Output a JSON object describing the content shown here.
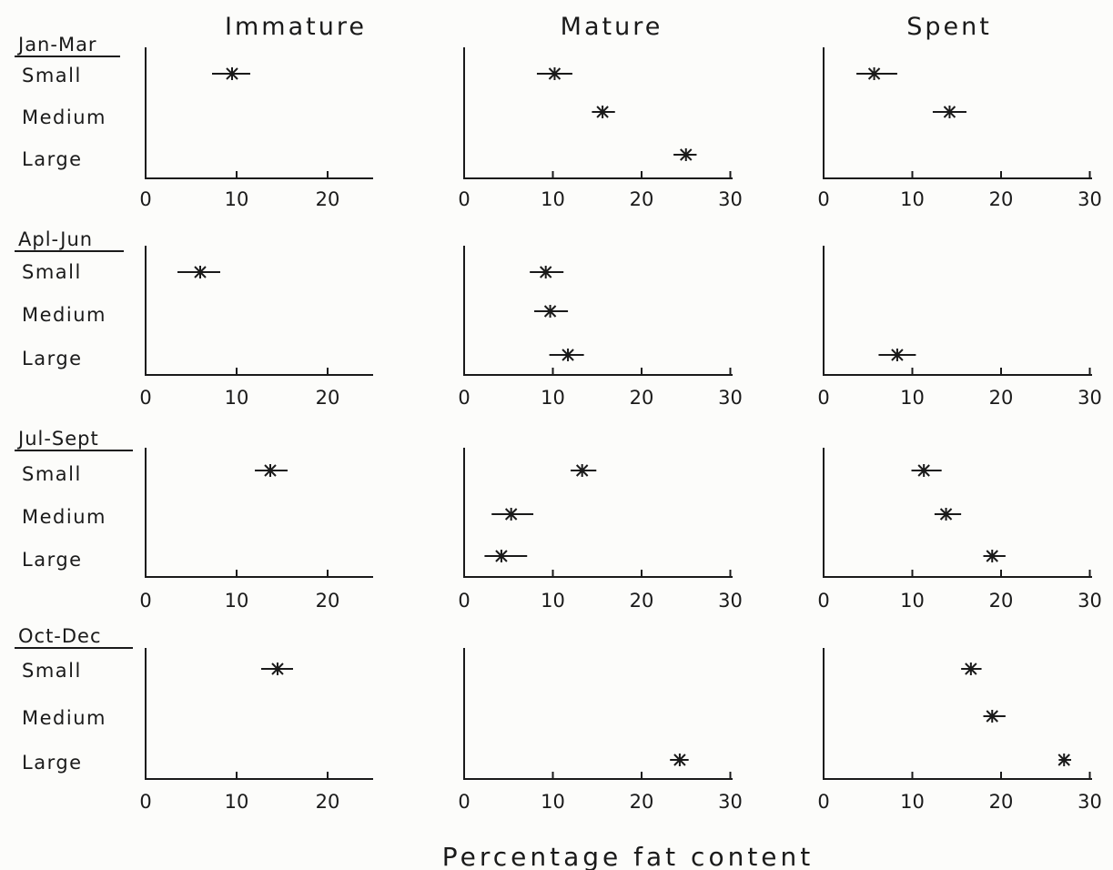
{
  "figure": {
    "x_axis_label": "Percentage fat content"
  },
  "chart_data": {
    "type": "scatter",
    "marker": "asterisk with horizontal error bar",
    "columns": [
      "Immature",
      "Mature",
      "Spent"
    ],
    "seasons": [
      "Jan-Mar",
      "Apl-Jun",
      "Jul-Sept",
      "Oct-Dec"
    ],
    "size_classes": [
      "Small",
      "Medium",
      "Large"
    ],
    "x_ticks": {
      "Immature": [
        0,
        10,
        20
      ],
      "Mature": [
        0,
        10,
        20,
        30
      ],
      "Spent": [
        0,
        10,
        20,
        30
      ]
    },
    "xlim": {
      "Immature": [
        0,
        25
      ],
      "Mature": [
        0,
        30
      ],
      "Spent": [
        0,
        30
      ]
    },
    "panels": [
      {
        "season": "Jan-Mar",
        "maturity": "Immature",
        "points": [
          {
            "size": "Small",
            "x": 9.5,
            "low": 7.3,
            "high": 11.5
          }
        ]
      },
      {
        "season": "Jan-Mar",
        "maturity": "Mature",
        "points": [
          {
            "size": "Small",
            "x": 10.2,
            "low": 8.2,
            "high": 12.2
          },
          {
            "size": "Medium",
            "x": 15.6,
            "low": 14.4,
            "high": 17.0
          },
          {
            "size": "Large",
            "x": 25.0,
            "low": 23.6,
            "high": 26.2
          }
        ]
      },
      {
        "season": "Jan-Mar",
        "maturity": "Spent",
        "points": [
          {
            "size": "Small",
            "x": 5.7,
            "low": 3.7,
            "high": 8.3
          },
          {
            "size": "Medium",
            "x": 14.2,
            "low": 12.3,
            "high": 16.1
          }
        ]
      },
      {
        "season": "Apl-Jun",
        "maturity": "Immature",
        "points": [
          {
            "size": "Small",
            "x": 6.0,
            "low": 3.5,
            "high": 8.2
          }
        ]
      },
      {
        "season": "Apl-Jun",
        "maturity": "Mature",
        "points": [
          {
            "size": "Small",
            "x": 9.2,
            "low": 7.4,
            "high": 11.2
          },
          {
            "size": "Medium",
            "x": 9.7,
            "low": 7.9,
            "high": 11.7
          },
          {
            "size": "Large",
            "x": 11.7,
            "low": 9.6,
            "high": 13.5
          }
        ]
      },
      {
        "season": "Apl-Jun",
        "maturity": "Spent",
        "points": [
          {
            "size": "Large",
            "x": 8.3,
            "low": 6.2,
            "high": 10.4
          }
        ]
      },
      {
        "season": "Jul-Sept",
        "maturity": "Immature",
        "points": [
          {
            "size": "Small",
            "x": 13.7,
            "low": 12.0,
            "high": 15.6
          }
        ]
      },
      {
        "season": "Jul-Sept",
        "maturity": "Mature",
        "points": [
          {
            "size": "Small",
            "x": 13.3,
            "low": 12.0,
            "high": 14.9
          },
          {
            "size": "Medium",
            "x": 5.3,
            "low": 3.1,
            "high": 7.8
          },
          {
            "size": "Large",
            "x": 4.2,
            "low": 2.3,
            "high": 7.1
          }
        ]
      },
      {
        "season": "Jul-Sept",
        "maturity": "Spent",
        "points": [
          {
            "size": "Small",
            "x": 11.3,
            "low": 9.9,
            "high": 13.3
          },
          {
            "size": "Medium",
            "x": 13.8,
            "low": 12.5,
            "high": 15.5
          },
          {
            "size": "Large",
            "x": 19.0,
            "low": 18.0,
            "high": 20.5
          }
        ]
      },
      {
        "season": "Oct-Dec",
        "maturity": "Immature",
        "points": [
          {
            "size": "Small",
            "x": 14.5,
            "low": 12.7,
            "high": 16.2
          }
        ]
      },
      {
        "season": "Oct-Dec",
        "maturity": "Mature",
        "points": [
          {
            "size": "Large",
            "x": 24.3,
            "low": 23.2,
            "high": 25.3
          }
        ]
      },
      {
        "season": "Oct-Dec",
        "maturity": "Spent",
        "points": [
          {
            "size": "Small",
            "x": 16.6,
            "low": 15.5,
            "high": 17.8
          },
          {
            "size": "Medium",
            "x": 19.0,
            "low": 18.0,
            "high": 20.5
          },
          {
            "size": "Large",
            "x": 27.1,
            "low": 26.5,
            "high": 27.9
          }
        ]
      }
    ]
  }
}
